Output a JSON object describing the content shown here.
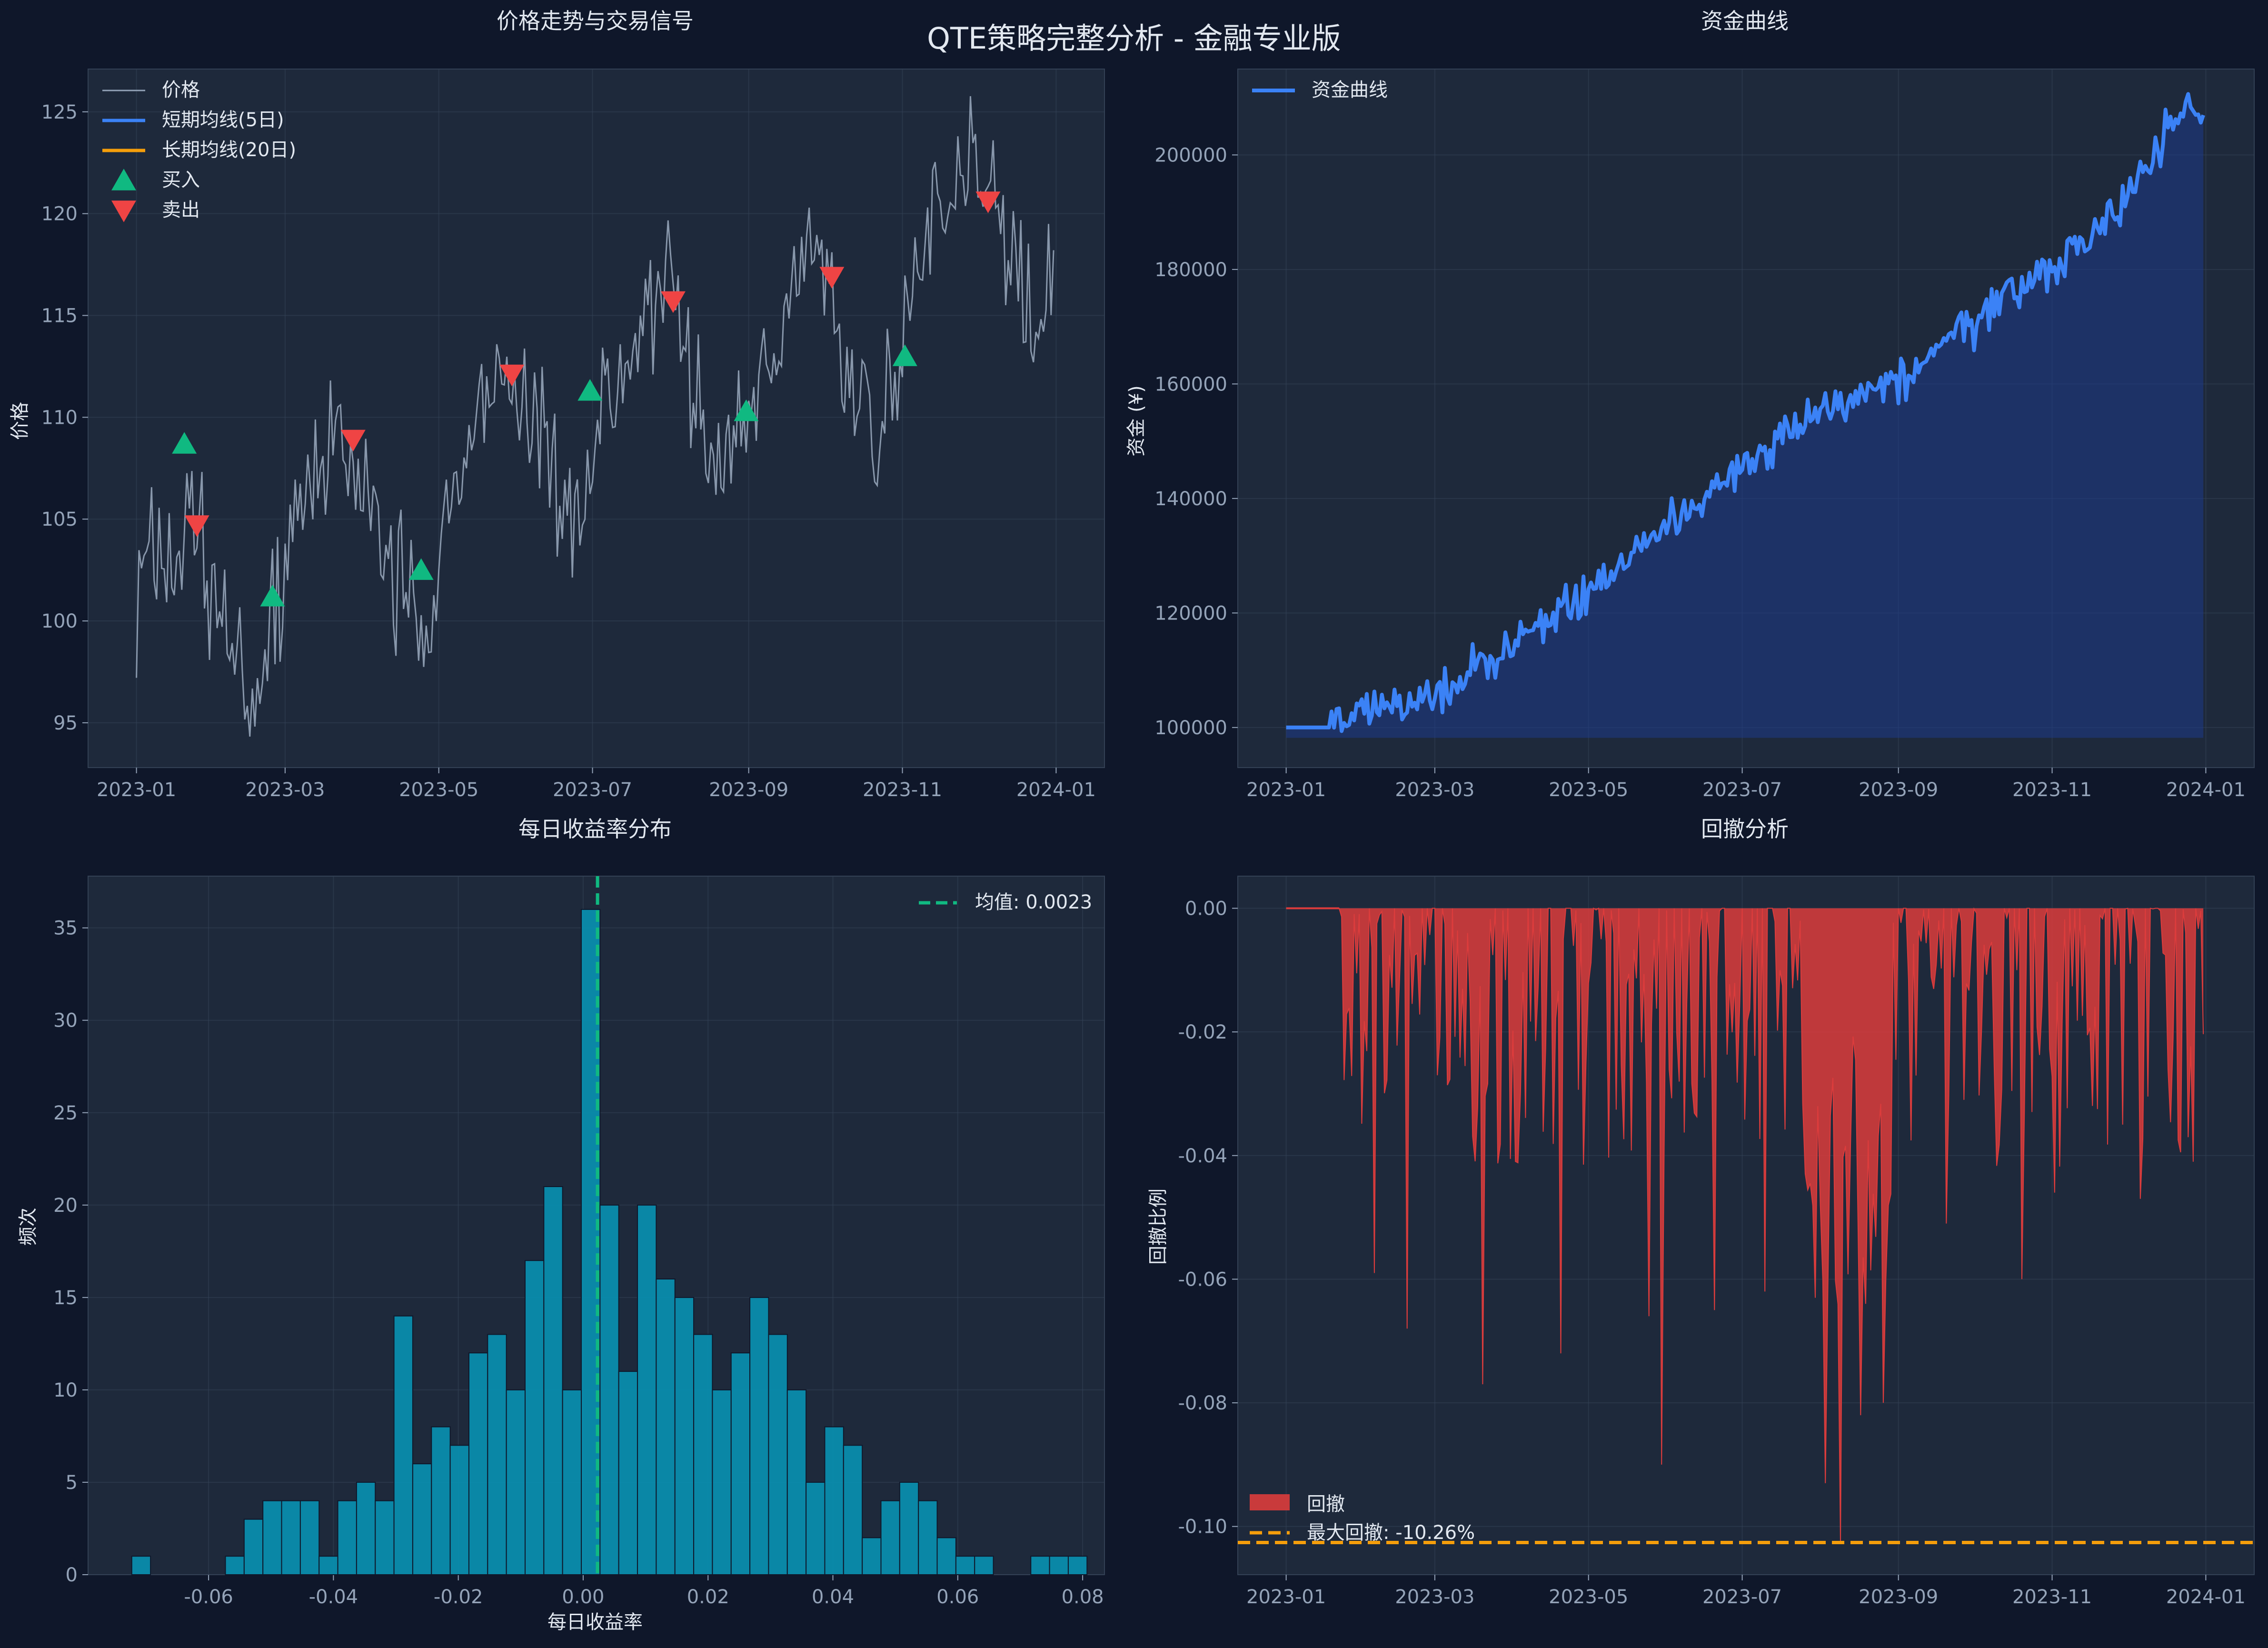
{
  "suptitle": "QTE策略完整分析 - 金融专业版",
  "colors": {
    "background": "#0f172a",
    "panel": "#1e293b",
    "grid": "#334155",
    "text": "#e2e8f0",
    "tick": "#94a3b8",
    "price": "#94a3b8",
    "short_ma": "#3b82f6",
    "long_ma": "#f59e0b",
    "buy": "#10b981",
    "sell": "#ef4444",
    "equity": "#3b82f6",
    "equity_fill": "#1e3a8a",
    "hist": "#0891b2",
    "mean": "#10b981",
    "drawdown": "#dc3c3c",
    "maxdd": "#f59e0b"
  },
  "chart_data": [
    {
      "type": "line",
      "title": "价格走势与交易信号",
      "xlabel": "",
      "ylabel": "价格",
      "x_ticks": [
        "2023-01",
        "2023-03",
        "2023-05",
        "2023-07",
        "2023-09",
        "2023-11",
        "2024-01"
      ],
      "y_ticks": [
        95,
        100,
        105,
        110,
        115,
        120,
        125
      ],
      "ylim": [
        92.8,
        127.1
      ],
      "legend": [
        "价格",
        "短期均线(5日)",
        "长期均线(20日)",
        "买入",
        "卖出"
      ],
      "legend_position": "top-left",
      "price_anchors": [
        [
          "2023-01-01",
          101
        ],
        [
          "2023-01-08",
          104
        ],
        [
          "2023-01-15",
          102
        ],
        [
          "2023-01-22",
          105
        ],
        [
          "2023-02-01",
          101
        ],
        [
          "2023-02-10",
          97
        ],
        [
          "2023-02-18",
          96
        ],
        [
          "2023-02-26",
          101
        ],
        [
          "2023-03-08",
          106
        ],
        [
          "2023-03-20",
          109
        ],
        [
          "2023-04-01",
          106
        ],
        [
          "2023-04-10",
          103
        ],
        [
          "2023-04-20",
          101
        ],
        [
          "2023-04-26",
          98
        ],
        [
          "2023-05-05",
          106
        ],
        [
          "2023-05-15",
          110
        ],
        [
          "2023-05-25",
          112
        ],
        [
          "2023-06-05",
          111
        ],
        [
          "2023-06-15",
          107
        ],
        [
          "2023-06-26",
          104
        ],
        [
          "2023-07-05",
          110
        ],
        [
          "2023-07-15",
          113
        ],
        [
          "2023-07-25",
          116
        ],
        [
          "2023-08-01",
          117
        ],
        [
          "2023-08-10",
          110
        ],
        [
          "2023-08-20",
          108
        ],
        [
          "2023-08-31",
          109
        ],
        [
          "2023-09-10",
          114
        ],
        [
          "2023-09-20",
          117
        ],
        [
          "2023-10-01",
          117
        ],
        [
          "2023-10-10",
          112
        ],
        [
          "2023-10-25",
          110
        ],
        [
          "2023-11-01",
          113
        ],
        [
          "2023-11-10",
          119
        ],
        [
          "2023-11-20",
          121
        ],
        [
          "2023-12-01",
          122
        ],
        [
          "2023-12-10",
          119
        ],
        [
          "2023-12-20",
          116
        ],
        [
          "2023-12-31",
          116
        ]
      ],
      "buy_signals": [
        [
          "2023-01-20",
          108.7
        ],
        [
          "2023-02-24",
          101.2
        ],
        [
          "2023-04-24",
          102.5
        ],
        [
          "2023-06-30",
          111.3
        ],
        [
          "2023-08-31",
          110.3
        ],
        [
          "2023-11-02",
          113.0
        ]
      ],
      "sell_signals": [
        [
          "2023-01-25",
          104.7
        ],
        [
          "2023-03-28",
          108.9
        ],
        [
          "2023-05-30",
          112.1
        ],
        [
          "2023-08-02",
          115.7
        ],
        [
          "2023-10-04",
          116.9
        ],
        [
          "2023-12-05",
          120.6
        ]
      ]
    },
    {
      "type": "area",
      "title": "资金曲线",
      "xlabel": "",
      "ylabel": "资金 (¥)",
      "x_ticks": [
        "2023-01",
        "2023-03",
        "2023-05",
        "2023-07",
        "2023-09",
        "2023-11",
        "2024-01"
      ],
      "y_ticks": [
        100000,
        120000,
        140000,
        160000,
        180000,
        200000
      ],
      "ylim": [
        93000,
        215000
      ],
      "legend": [
        "资金曲线"
      ],
      "legend_position": "top-left",
      "fill_base": 98200,
      "equity_anchors": [
        [
          "2023-01-01",
          100000
        ],
        [
          "2023-01-20",
          100000
        ],
        [
          "2023-02-01",
          103000
        ],
        [
          "2023-03-01",
          105000
        ],
        [
          "2023-04-01",
          115000
        ],
        [
          "2023-05-01",
          124000
        ],
        [
          "2023-06-01",
          136000
        ],
        [
          "2023-07-01",
          145000
        ],
        [
          "2023-08-01",
          155000
        ],
        [
          "2023-09-01",
          160000
        ],
        [
          "2023-10-01",
          172000
        ],
        [
          "2023-11-01",
          180000
        ],
        [
          "2023-12-01",
          192000
        ],
        [
          "2023-12-24",
          210000
        ],
        [
          "2023-12-31",
          203500
        ]
      ]
    },
    {
      "type": "bar",
      "title": "每日收益率分布",
      "xlabel": "每日收益率",
      "ylabel": "频次",
      "x_ticks": [
        -0.06,
        -0.04,
        -0.02,
        0.0,
        0.02,
        0.04,
        0.06,
        0.08
      ],
      "x_tick_labels": [
        "-0.06",
        "-0.04",
        "-0.02",
        "0.00",
        "0.02",
        "0.04",
        "0.06",
        "0.08"
      ],
      "y_ticks": [
        0,
        5,
        10,
        15,
        20,
        25,
        30,
        35
      ],
      "xlim": [
        -0.0793,
        0.0835
      ],
      "ylim": [
        0,
        37.8
      ],
      "bin_start": -0.0723,
      "bin_width": 0.003,
      "counts": [
        1,
        0,
        0,
        0,
        0,
        1,
        3,
        4,
        4,
        4,
        1,
        4,
        5,
        4,
        14,
        6,
        8,
        7,
        12,
        13,
        10,
        17,
        21,
        10,
        36,
        20,
        11,
        20,
        16,
        15,
        13,
        10,
        12,
        15,
        13,
        10,
        5,
        8,
        7,
        2,
        4,
        5,
        4,
        2,
        1,
        1,
        0,
        0,
        1,
        1,
        1
      ],
      "mean_value": 0.0023,
      "mean_label": "均值: 0.0023",
      "legend_position": "top-right"
    },
    {
      "type": "area",
      "title": "回撤分析",
      "xlabel": "",
      "ylabel": "回撤比例",
      "x_ticks": [
        "2023-01",
        "2023-03",
        "2023-05",
        "2023-07",
        "2023-09",
        "2023-11",
        "2024-01"
      ],
      "y_ticks": [
        0.0,
        -0.02,
        -0.04,
        -0.06,
        -0.08,
        -0.1
      ],
      "y_tick_labels": [
        "0.00",
        "-0.02",
        "-0.04",
        "-0.06",
        "-0.08",
        "-0.10"
      ],
      "ylim": [
        -0.1078,
        0.0052
      ],
      "max_drawdown": -0.1026,
      "legend": [
        "回撤",
        "最大回撤: -10.26%"
      ],
      "legend_position": "bottom-left",
      "drawdown_spikes": [
        [
          "2023-02-05",
          -0.059
        ],
        [
          "2023-02-18",
          -0.068
        ],
        [
          "2023-03-20",
          -0.077
        ],
        [
          "2023-04-20",
          -0.072
        ],
        [
          "2023-05-25",
          -0.066
        ],
        [
          "2023-05-30",
          -0.09
        ],
        [
          "2023-06-20",
          -0.065
        ],
        [
          "2023-07-10",
          -0.062
        ],
        [
          "2023-08-03",
          -0.093
        ],
        [
          "2023-08-09",
          -0.1026
        ],
        [
          "2023-08-17",
          -0.082
        ],
        [
          "2023-08-26",
          -0.08
        ],
        [
          "2023-09-20",
          -0.051
        ],
        [
          "2023-10-20",
          -0.06
        ],
        [
          "2023-11-02",
          -0.046
        ],
        [
          "2023-12-06",
          -0.047
        ],
        [
          "2023-12-27",
          -0.041
        ]
      ]
    }
  ]
}
